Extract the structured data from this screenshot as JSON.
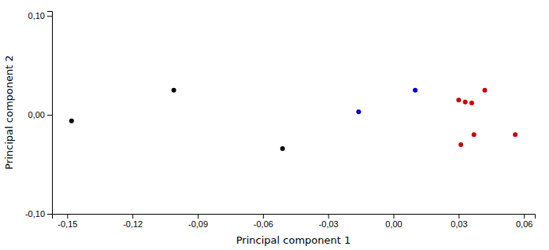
{
  "chart_data": {
    "type": "scatter",
    "xlabel": "Principal component 1",
    "ylabel": "Principal component 2",
    "series": [
      {
        "color": "#000000",
        "x": [
          -0.148,
          -0.101,
          -0.051
        ],
        "values": [
          -0.006,
          0.025,
          -0.034
        ]
      },
      {
        "color": "#0000cc",
        "x": [
          -0.016,
          0.01
        ],
        "values": [
          0.003,
          0.025
        ]
      },
      {
        "color": "#cc0000",
        "x": [
          0.03,
          0.033,
          0.036,
          0.042,
          0.037,
          0.031,
          0.056
        ],
        "values": [
          0.015,
          0.013,
          0.012,
          0.025,
          -0.02,
          -0.03,
          -0.02
        ]
      }
    ],
    "xlim": [
      -0.157,
      0.065
    ],
    "ylim": [
      -0.1,
      0.105
    ],
    "xticks": [
      {
        "value": -0.15,
        "label": "-0,15"
      },
      {
        "value": -0.12,
        "label": "-0,12"
      },
      {
        "value": -0.09,
        "label": "-0,09"
      },
      {
        "value": -0.06,
        "label": "-0,06"
      },
      {
        "value": -0.03,
        "label": "-0,03"
      },
      {
        "value": 0.0,
        "label": "0,00"
      },
      {
        "value": 0.03,
        "label": "0,03"
      },
      {
        "value": 0.06,
        "label": "0,06"
      }
    ],
    "yticks": [
      {
        "value": -0.1,
        "label": "-0,10"
      },
      {
        "value": 0.0,
        "label": "0,00"
      },
      {
        "value": 0.1,
        "label": "0,10"
      }
    ],
    "grid": false
  }
}
